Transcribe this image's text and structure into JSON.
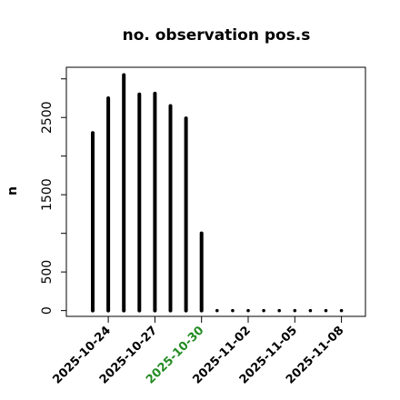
{
  "chart_data": {
    "type": "bar",
    "title": "no. observation pos.s",
    "ylabel": "n",
    "xlabel": "",
    "x": [
      "2025-10-23",
      "2025-10-24",
      "2025-10-25",
      "2025-10-26",
      "2025-10-27",
      "2025-10-28",
      "2025-10-29",
      "2025-10-30",
      "2025-10-31",
      "2025-11-01",
      "2025-11-02",
      "2025-11-03",
      "2025-11-04",
      "2025-11-05",
      "2025-11-06",
      "2025-11-07",
      "2025-11-08"
    ],
    "values": [
      2300,
      2750,
      3050,
      2800,
      2810,
      2650,
      2490,
      1000,
      0,
      0,
      0,
      0,
      0,
      0,
      0,
      0,
      0
    ],
    "ylim": [
      -75,
      3150
    ],
    "yticks": [
      0,
      500,
      1500,
      2500
    ],
    "xtick_labels": [
      {
        "label": "2025-10-24",
        "color": "#000000"
      },
      {
        "label": "2025-10-27",
        "color": "#000000"
      },
      {
        "label": "2025-10-30",
        "color": "#228B22"
      },
      {
        "label": "2025-11-02",
        "color": "#000000"
      },
      {
        "label": "2025-11-05",
        "color": "#000000"
      },
      {
        "label": "2025-11-08",
        "color": "#000000"
      }
    ],
    "bar_color": "#000000",
    "highlight_color": "#228B22",
    "grid": false,
    "legend": "none"
  }
}
